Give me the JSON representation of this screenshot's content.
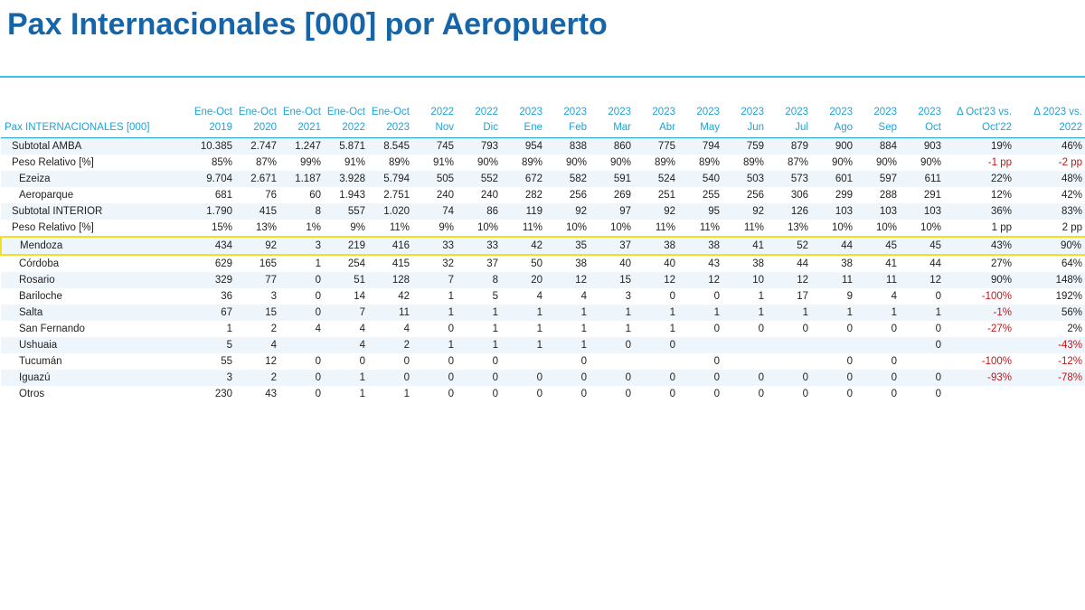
{
  "title": "Pax Internacionales [000] por Aeropuerto",
  "table": {
    "corner": "Pax INTERNACIONALES [000]",
    "columns": [
      {
        "top": "Ene-Oct",
        "bottom": "2019"
      },
      {
        "top": "Ene-Oct",
        "bottom": "2020"
      },
      {
        "top": "Ene-Oct",
        "bottom": "2021"
      },
      {
        "top": "Ene-Oct",
        "bottom": "2022"
      },
      {
        "top": "Ene-Oct",
        "bottom": "2023"
      },
      {
        "top": "2022",
        "bottom": "Nov"
      },
      {
        "top": "2022",
        "bottom": "Dic"
      },
      {
        "top": "2023",
        "bottom": "Ene"
      },
      {
        "top": "2023",
        "bottom": "Feb"
      },
      {
        "top": "2023",
        "bottom": "Mar"
      },
      {
        "top": "2023",
        "bottom": "Abr"
      },
      {
        "top": "2023",
        "bottom": "May"
      },
      {
        "top": "2023",
        "bottom": "Jun"
      },
      {
        "top": "2023",
        "bottom": "Jul"
      },
      {
        "top": "2023",
        "bottom": "Ago"
      },
      {
        "top": "2023",
        "bottom": "Sep"
      },
      {
        "top": "2023",
        "bottom": "Oct"
      },
      {
        "top": "Δ Oct'23 vs.",
        "bottom": "Oct'22"
      },
      {
        "top": "Δ 2023 vs.",
        "bottom": "2022"
      }
    ],
    "rows": [
      {
        "label": "Subtotal AMBA",
        "cells": [
          "10.385",
          "2.747",
          "1.247",
          "5.871",
          "8.545",
          "745",
          "793",
          "954",
          "838",
          "860",
          "775",
          "794",
          "759",
          "879",
          "900",
          "884",
          "903",
          "19%",
          "46%"
        ]
      },
      {
        "label": "Peso Relativo [%]",
        "cells": [
          "85%",
          "87%",
          "99%",
          "91%",
          "89%",
          "91%",
          "90%",
          "89%",
          "90%",
          "90%",
          "89%",
          "89%",
          "89%",
          "87%",
          "90%",
          "90%",
          "90%",
          "-1 pp",
          "-2 pp"
        ]
      },
      {
        "label": "Ezeiza",
        "cells": [
          "9.704",
          "2.671",
          "1.187",
          "3.928",
          "5.794",
          "505",
          "552",
          "672",
          "582",
          "591",
          "524",
          "540",
          "503",
          "573",
          "601",
          "597",
          "611",
          "22%",
          "48%"
        ]
      },
      {
        "label": "Aeroparque",
        "cells": [
          "681",
          "76",
          "60",
          "1.943",
          "2.751",
          "240",
          "240",
          "282",
          "256",
          "269",
          "251",
          "255",
          "256",
          "306",
          "299",
          "288",
          "291",
          "12%",
          "42%"
        ]
      },
      {
        "label": "Subtotal INTERIOR",
        "cells": [
          "1.790",
          "415",
          "8",
          "557",
          "1.020",
          "74",
          "86",
          "119",
          "92",
          "97",
          "92",
          "95",
          "92",
          "126",
          "103",
          "103",
          "103",
          "36%",
          "83%"
        ]
      },
      {
        "label": "Peso Relativo [%]",
        "cells": [
          "15%",
          "13%",
          "1%",
          "9%",
          "11%",
          "9%",
          "10%",
          "11%",
          "10%",
          "10%",
          "11%",
          "11%",
          "11%",
          "13%",
          "10%",
          "10%",
          "10%",
          "1 pp",
          "2 pp"
        ]
      },
      {
        "label": "Mendoza",
        "cells": [
          "434",
          "92",
          "3",
          "219",
          "416",
          "33",
          "33",
          "42",
          "35",
          "37",
          "38",
          "38",
          "41",
          "52",
          "44",
          "45",
          "45",
          "43%",
          "90%"
        ]
      },
      {
        "label": "Córdoba",
        "cells": [
          "629",
          "165",
          "1",
          "254",
          "415",
          "32",
          "37",
          "50",
          "38",
          "40",
          "40",
          "43",
          "38",
          "44",
          "38",
          "41",
          "44",
          "27%",
          "64%"
        ]
      },
      {
        "label": "Rosario",
        "cells": [
          "329",
          "77",
          "0",
          "51",
          "128",
          "7",
          "8",
          "20",
          "12",
          "15",
          "12",
          "12",
          "10",
          "12",
          "11",
          "11",
          "12",
          "90%",
          "148%"
        ]
      },
      {
        "label": "Bariloche",
        "cells": [
          "36",
          "3",
          "0",
          "14",
          "42",
          "1",
          "5",
          "4",
          "4",
          "3",
          "0",
          "0",
          "1",
          "17",
          "9",
          "4",
          "0",
          "-100%",
          "192%"
        ]
      },
      {
        "label": "Salta",
        "cells": [
          "67",
          "15",
          "0",
          "7",
          "11",
          "1",
          "1",
          "1",
          "1",
          "1",
          "1",
          "1",
          "1",
          "1",
          "1",
          "1",
          "1",
          "-1%",
          "56%"
        ]
      },
      {
        "label": "San Fernando",
        "cells": [
          "1",
          "2",
          "4",
          "4",
          "4",
          "0",
          "1",
          "1",
          "1",
          "1",
          "1",
          "0",
          "0",
          "0",
          "0",
          "0",
          "0",
          "-27%",
          "2%"
        ]
      },
      {
        "label": "Ushuaia",
        "cells": [
          "5",
          "4",
          null,
          "4",
          "2",
          "1",
          "1",
          "1",
          "1",
          "0",
          "0",
          null,
          null,
          null,
          null,
          null,
          "0",
          null,
          "-43%"
        ]
      },
      {
        "label": "Tucumán",
        "cells": [
          "55",
          "12",
          "0",
          "0",
          "0",
          "0",
          "0",
          null,
          "0",
          null,
          null,
          "0",
          null,
          null,
          "0",
          "0",
          null,
          "-100%",
          "-12%"
        ]
      },
      {
        "label": "Iguazú",
        "cells": [
          "3",
          "2",
          "0",
          "1",
          "0",
          "0",
          "0",
          "0",
          "0",
          "0",
          "0",
          "0",
          "0",
          "0",
          "0",
          "0",
          "0",
          "-93%",
          "-78%"
        ]
      },
      {
        "label": "Otros",
        "cells": [
          "230",
          "43",
          "0",
          "1",
          "1",
          "0",
          "0",
          "0",
          "0",
          "0",
          "0",
          "0",
          "0",
          "0",
          "0",
          "0",
          "0",
          null,
          null
        ]
      }
    ]
  }
}
